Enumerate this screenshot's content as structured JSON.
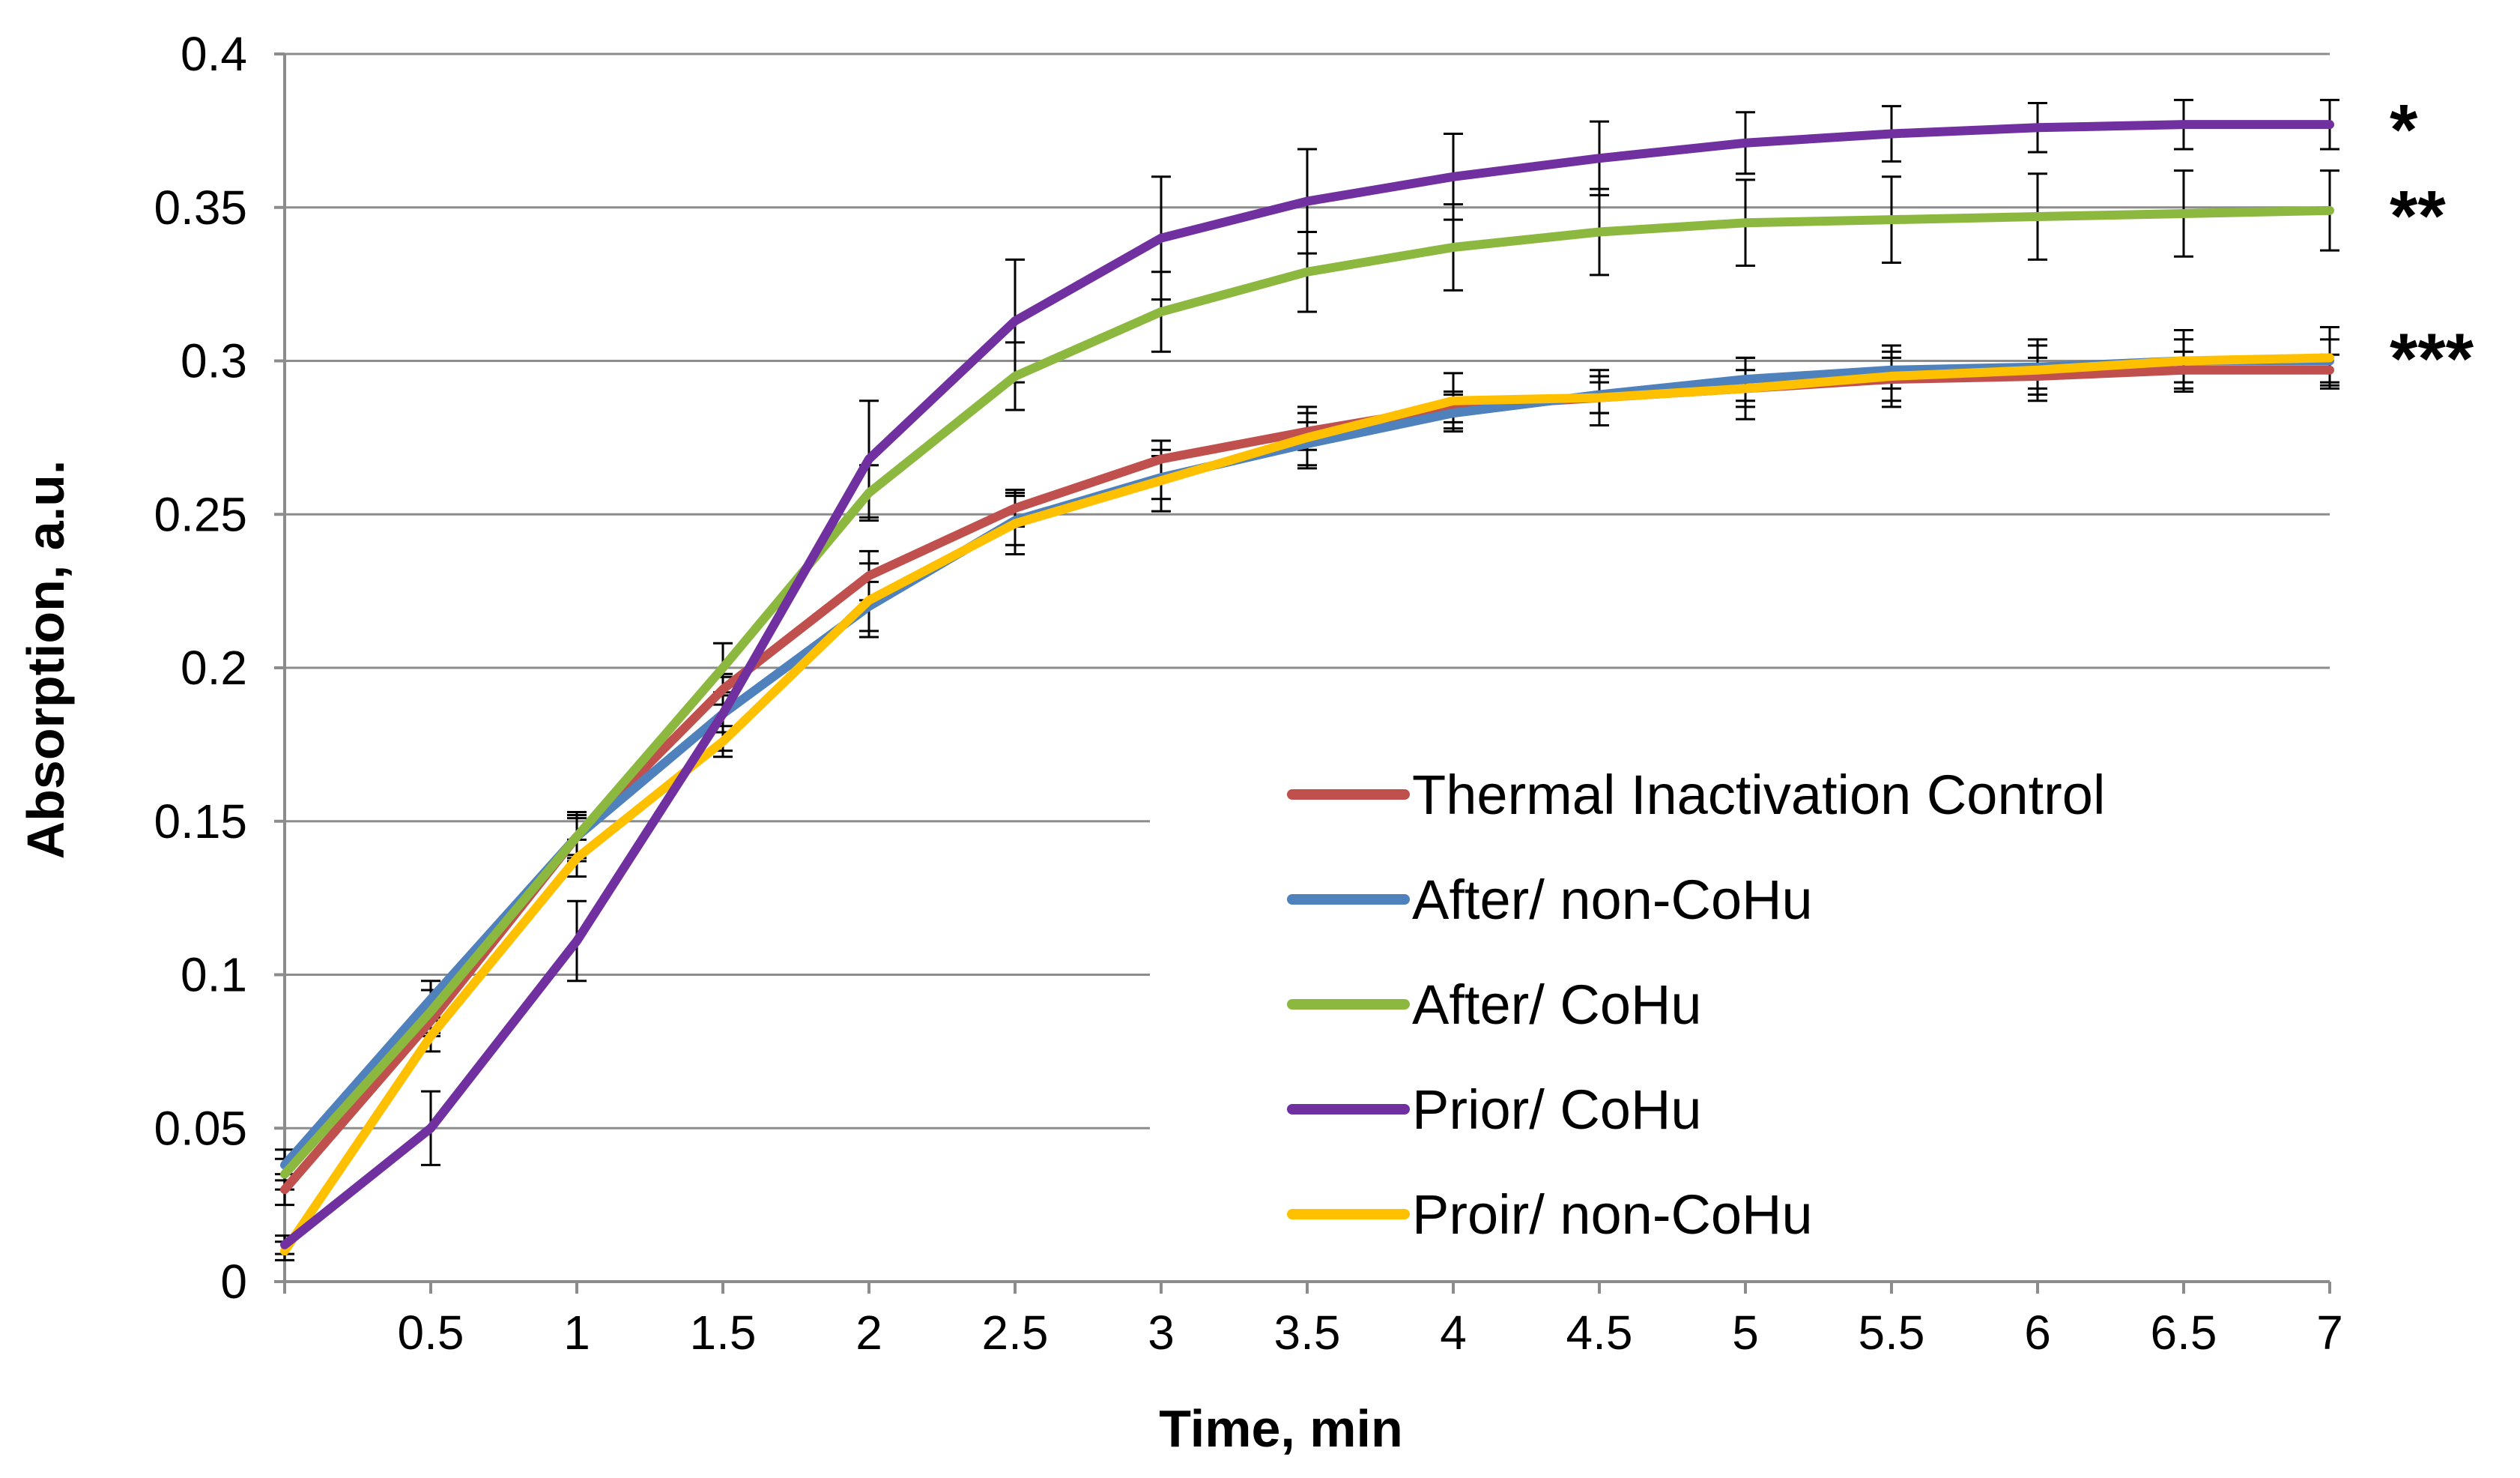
{
  "chart_data": {
    "type": "line",
    "title": "",
    "xlabel": "Time, min",
    "ylabel": "Absorption, a.u.",
    "xlim": [
      0,
      7
    ],
    "ylim": [
      0,
      0.4
    ],
    "grid": true,
    "legend_position": "right-center",
    "x": [
      0,
      0.5,
      1,
      1.5,
      2,
      2.5,
      3,
      3.5,
      4,
      4.5,
      5,
      5.5,
      6,
      6.5,
      7
    ],
    "x_tick_labels": [
      "0.5",
      "1",
      "1.5",
      "2",
      "2.5",
      "3",
      "3.5",
      "4",
      "4.5",
      "5",
      "5.5",
      "6",
      "6.5",
      "7"
    ],
    "y_tick_labels": [
      "0",
      "0.05",
      "0.1",
      "0.15",
      "0.2",
      "0.25",
      "0.3",
      "0.35",
      "0.4"
    ],
    "series": [
      {
        "name": "Thermal Inactivation Control",
        "color": "#c0504d",
        "values": [
          0.03,
          0.085,
          0.145,
          0.193,
          0.23,
          0.252,
          0.268,
          0.277,
          0.285,
          0.288,
          0.291,
          0.294,
          0.295,
          0.297,
          0.297
        ],
        "errors": [
          0.005,
          0.005,
          0.006,
          0.005,
          0.008,
          0.006,
          0.006,
          0.006,
          0.005,
          0.005,
          0.006,
          0.007,
          0.006,
          0.006,
          0.005
        ]
      },
      {
        "name": "After/ non-CoHu",
        "color": "#4f81bd",
        "values": [
          0.038,
          0.092,
          0.145,
          0.185,
          0.22,
          0.248,
          0.262,
          0.273,
          0.283,
          0.289,
          0.294,
          0.297,
          0.298,
          0.3,
          0.3
        ],
        "errors": [
          0.005,
          0.006,
          0.007,
          0.006,
          0.008,
          0.008,
          0.007,
          0.007,
          0.006,
          0.006,
          0.007,
          0.006,
          0.007,
          0.007,
          0.007
        ]
      },
      {
        "name": "After/ CoHu",
        "color": "#8cb840",
        "values": [
          0.035,
          0.088,
          0.145,
          0.2,
          0.257,
          0.295,
          0.316,
          0.329,
          0.337,
          0.342,
          0.345,
          0.346,
          0.347,
          0.348,
          0.349
        ],
        "errors": [
          0.005,
          0.007,
          0.008,
          0.008,
          0.009,
          0.011,
          0.013,
          0.013,
          0.014,
          0.014,
          0.014,
          0.014,
          0.014,
          0.014,
          0.013
        ]
      },
      {
        "name": "Prior/ CoHu",
        "color": "#7030a0",
        "values": [
          0.012,
          0.05,
          0.111,
          0.185,
          0.268,
          0.313,
          0.34,
          0.352,
          0.36,
          0.366,
          0.371,
          0.374,
          0.376,
          0.377,
          0.377
        ],
        "errors": [
          0.003,
          0.012,
          0.013,
          0.012,
          0.019,
          0.02,
          0.02,
          0.017,
          0.014,
          0.012,
          0.01,
          0.009,
          0.008,
          0.008,
          0.008
        ]
      },
      {
        "name": "Proir/ non-CoHu",
        "color": "#ffc000",
        "values": [
          0.01,
          0.08,
          0.138,
          0.176,
          0.222,
          0.247,
          0.261,
          0.275,
          0.287,
          0.288,
          0.291,
          0.295,
          0.297,
          0.3,
          0.301
        ],
        "errors": [
          0.003,
          0.005,
          0.006,
          0.005,
          0.012,
          0.01,
          0.01,
          0.01,
          0.009,
          0.009,
          0.01,
          0.01,
          0.01,
          0.01,
          0.01
        ]
      }
    ],
    "annotations": [
      {
        "text": "*",
        "series": "Prior/ CoHu"
      },
      {
        "text": "**",
        "series": "After/ CoHu"
      },
      {
        "text": "***",
        "series": "Proir/ non-CoHu"
      }
    ]
  }
}
